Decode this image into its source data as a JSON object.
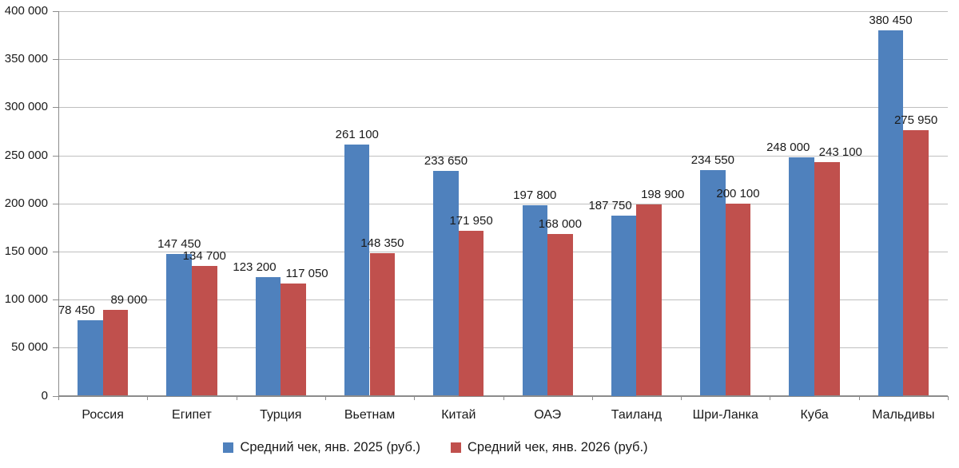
{
  "chart_data": {
    "type": "bar",
    "title": "",
    "categories": [
      "Россия",
      "Египет",
      "Турция",
      "Вьетнам",
      "Китай",
      "ОАЭ",
      "Таиланд",
      "Шри-Ланка",
      "Куба",
      "Мальдивы"
    ],
    "series": [
      {
        "name": "Средний чек, янв. 2025 (руб.)",
        "color": "#4F81BD",
        "values": [
          78450,
          147450,
          123200,
          261100,
          233650,
          197800,
          187750,
          234550,
          248000,
          380450
        ]
      },
      {
        "name": "Средний чек, янв. 2026 (руб.)",
        "color": "#C0504D",
        "values": [
          89000,
          134700,
          117050,
          148350,
          171950,
          168000,
          198900,
          200100,
          243100,
          275950
        ]
      }
    ],
    "data_labels": {
      "series_2025": [
        "78 450",
        "147 450",
        "123 200",
        "261 100",
        "233 650",
        "197 800",
        "187 750",
        "234 550",
        "248 000",
        "380 450"
      ],
      "series_2026": [
        "89 000",
        "134 700",
        "117 050",
        "148 350",
        "171 950",
        "168 000",
        "198 900",
        "200 100",
        "243 100",
        "275 950"
      ]
    },
    "ylim": [
      0,
      400000
    ],
    "ytick_step": 50000,
    "ytick_labels": [
      "0",
      "50 000",
      "100 000",
      "150 000",
      "200 000",
      "250 000",
      "300 000",
      "350 000",
      "400 000"
    ],
    "xlabel": "",
    "ylabel": "",
    "grid": true,
    "legend_position": "bottom"
  },
  "colors": {
    "series_2025": "#4F81BD",
    "series_2026": "#C0504D",
    "gridline": "#BFBFBF",
    "axis": "#8C8C8C",
    "text": "#1A1A1A",
    "background": "#FFFFFF"
  }
}
